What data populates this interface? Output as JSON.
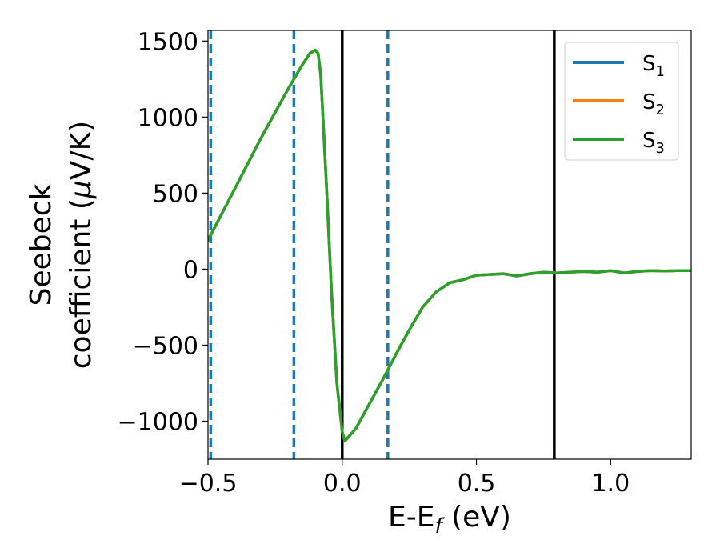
{
  "chart_data": {
    "type": "line",
    "xlabel": {
      "main": "E-E",
      "sub": "f",
      "unit": " (eV)"
    },
    "ylabel": {
      "line1": "Seebeck",
      "line2_prefix": "coefficient  (",
      "mu": "μ",
      "line2_suffix": "V/K)"
    },
    "xlim": [
      -0.5,
      1.3
    ],
    "ylim": [
      -1250,
      1570
    ],
    "x_ticks": [
      -0.5,
      0.0,
      0.5,
      1.0
    ],
    "x_tick_labels": [
      "−0.5",
      "0.0",
      "0.5",
      "1.0"
    ],
    "y_ticks": [
      -1000,
      -500,
      0,
      500,
      1000,
      1500
    ],
    "y_tick_labels": [
      "−1000",
      "−500",
      "0",
      "500",
      "1000",
      "1500"
    ],
    "grid": false,
    "legend_position": "top-right",
    "series": [
      {
        "name": "S",
        "sub": "1",
        "color": "#1f77b4",
        "x": [
          -0.5,
          -0.4,
          -0.3,
          -0.2,
          -0.15,
          -0.12,
          -0.1,
          -0.09,
          -0.08,
          -0.06,
          -0.04,
          -0.02,
          0.0,
          0.01,
          0.05,
          0.1,
          0.15,
          0.2,
          0.25,
          0.3,
          0.35,
          0.4,
          0.45,
          0.5,
          0.55,
          0.6,
          0.65,
          0.7,
          0.75,
          0.8,
          0.85,
          0.9,
          0.95,
          1.0,
          1.05,
          1.1,
          1.15,
          1.2,
          1.25,
          1.3
        ],
        "y": [
          190,
          530,
          870,
          1190,
          1340,
          1420,
          1440,
          1420,
          1280,
          600,
          -150,
          -750,
          -1070,
          -1130,
          -1050,
          -890,
          -730,
          -560,
          -400,
          -250,
          -150,
          -90,
          -70,
          -40,
          -35,
          -30,
          -45,
          -30,
          -20,
          -25,
          -20,
          -15,
          -20,
          -10,
          -25,
          -15,
          -10,
          -12,
          -10,
          -10
        ]
      },
      {
        "name": "S",
        "sub": "2",
        "color": "#ff7f0e",
        "x": [
          -0.5,
          -0.4,
          -0.3,
          -0.2,
          -0.15,
          -0.12,
          -0.1,
          -0.09,
          -0.08,
          -0.06,
          -0.04,
          -0.02,
          0.0,
          0.01,
          0.05,
          0.1,
          0.15,
          0.2,
          0.25,
          0.3,
          0.35,
          0.4,
          0.45,
          0.5,
          0.55,
          0.6,
          0.65,
          0.7,
          0.75,
          0.8,
          0.85,
          0.9,
          0.95,
          1.0,
          1.05,
          1.1,
          1.15,
          1.2,
          1.25,
          1.3
        ],
        "y": [
          190,
          530,
          870,
          1190,
          1340,
          1420,
          1440,
          1420,
          1280,
          600,
          -150,
          -750,
          -1070,
          -1130,
          -1050,
          -890,
          -730,
          -560,
          -400,
          -250,
          -150,
          -90,
          -70,
          -40,
          -35,
          -30,
          -45,
          -30,
          -20,
          -25,
          -20,
          -15,
          -20,
          -10,
          -25,
          -15,
          -10,
          -12,
          -10,
          -10
        ]
      },
      {
        "name": "S",
        "sub": "3",
        "color": "#2ca02c",
        "x": [
          -0.5,
          -0.4,
          -0.3,
          -0.2,
          -0.15,
          -0.12,
          -0.1,
          -0.09,
          -0.08,
          -0.06,
          -0.04,
          -0.02,
          0.0,
          0.01,
          0.05,
          0.1,
          0.15,
          0.2,
          0.25,
          0.3,
          0.35,
          0.4,
          0.45,
          0.5,
          0.55,
          0.6,
          0.65,
          0.7,
          0.75,
          0.8,
          0.85,
          0.9,
          0.95,
          1.0,
          1.05,
          1.1,
          1.15,
          1.2,
          1.25,
          1.3
        ],
        "y": [
          190,
          530,
          870,
          1190,
          1340,
          1420,
          1440,
          1420,
          1280,
          600,
          -150,
          -750,
          -1070,
          -1130,
          -1050,
          -890,
          -730,
          -560,
          -400,
          -250,
          -150,
          -90,
          -70,
          -40,
          -35,
          -30,
          -45,
          -30,
          -20,
          -25,
          -20,
          -15,
          -20,
          -10,
          -25,
          -15,
          -10,
          -12,
          -10,
          -10
        ]
      }
    ],
    "vertical_lines": [
      {
        "x": -0.49,
        "style": "dashed",
        "color": "#1f77b4"
      },
      {
        "x": -0.18,
        "style": "dashed",
        "color": "#1f77b4"
      },
      {
        "x": 0.17,
        "style": "dashed",
        "color": "#1f77b4"
      },
      {
        "x": 0.0,
        "style": "solid",
        "color": "#000000"
      },
      {
        "x": 0.79,
        "style": "solid",
        "color": "#000000"
      }
    ]
  }
}
